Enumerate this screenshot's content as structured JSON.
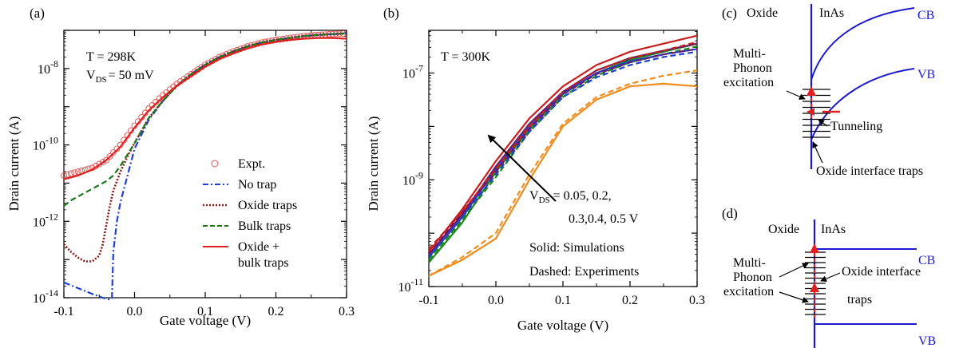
{
  "chart_data": [
    {
      "panel": "(a)",
      "type": "line",
      "xlabel": "Gate voltage (V)",
      "ylabel": "Drain current (A)",
      "xlim": [
        -0.1,
        0.3
      ],
      "ylim_log10": [
        -14,
        -7
      ],
      "y_scale": "log",
      "x_ticks": [
        "-0.1",
        "0.0",
        "0.1",
        "0.2",
        "0.3"
      ],
      "y_ticks": [
        {
          "base": "10",
          "exp": "-14"
        },
        {
          "base": "10",
          "exp": "-12"
        },
        {
          "base": "10",
          "exp": "-10"
        },
        {
          "base": "10",
          "exp": "-8"
        }
      ],
      "annotation_T": "T = 298K",
      "annotation_V": {
        "main": "V",
        "sub": "DS",
        "rest": "= 50 mV"
      },
      "legend_position": "lower-right",
      "series": [
        {
          "name": "Expt.",
          "style": "circles",
          "color": "#e05050",
          "x": [
            -0.1,
            -0.08,
            -0.06,
            -0.04,
            -0.02,
            0.0,
            0.02,
            0.04,
            0.06,
            0.08,
            0.1,
            0.12,
            0.14,
            0.16,
            0.18,
            0.2,
            0.22,
            0.24,
            0.26,
            0.28,
            0.3
          ],
          "log10_y": [
            -10.8,
            -10.7,
            -10.6,
            -10.4,
            -10.0,
            -9.5,
            -9.05,
            -8.7,
            -8.4,
            -8.15,
            -7.9,
            -7.7,
            -7.55,
            -7.42,
            -7.32,
            -7.25,
            -7.2,
            -7.15,
            -7.12,
            -7.1,
            -7.08
          ]
        },
        {
          "name": "No trap",
          "style": "dashdot",
          "color": "#2040d0",
          "x": [
            -0.1,
            -0.08,
            -0.06,
            -0.045,
            -0.035,
            -0.032,
            -0.03,
            -0.025,
            -0.02,
            -0.01,
            0.0,
            0.02,
            0.04,
            0.06,
            0.08,
            0.1,
            0.12,
            0.14,
            0.16,
            0.18,
            0.2,
            0.22,
            0.24,
            0.26,
            0.28,
            0.3
          ],
          "log10_y": [
            -13.6,
            -13.75,
            -13.9,
            -14.0,
            -14.05,
            -14.0,
            -12.8,
            -12.0,
            -11.5,
            -10.8,
            -10.1,
            -9.35,
            -8.85,
            -8.45,
            -8.15,
            -7.9,
            -7.7,
            -7.55,
            -7.42,
            -7.32,
            -7.25,
            -7.2,
            -7.15,
            -7.12,
            -7.1,
            -7.08
          ]
        },
        {
          "name": "Oxide traps",
          "style": "dotted",
          "color": "#8b1a1a",
          "x": [
            -0.1,
            -0.09,
            -0.08,
            -0.07,
            -0.06,
            -0.05,
            -0.045,
            -0.04,
            -0.035,
            -0.03,
            -0.02,
            -0.01,
            0.0,
            0.02,
            0.04,
            0.06,
            0.08,
            0.1,
            0.12,
            0.14,
            0.16,
            0.18,
            0.2,
            0.22,
            0.24,
            0.26,
            0.28,
            0.3
          ],
          "log10_y": [
            -12.6,
            -12.8,
            -12.95,
            -13.05,
            -13.05,
            -12.9,
            -12.6,
            -12.1,
            -11.6,
            -11.2,
            -10.7,
            -10.3,
            -9.95,
            -9.3,
            -8.85,
            -8.45,
            -8.15,
            -7.9,
            -7.7,
            -7.55,
            -7.42,
            -7.32,
            -7.25,
            -7.2,
            -7.15,
            -7.12,
            -7.1,
            -7.08
          ]
        },
        {
          "name": "Bulk traps",
          "style": "dashed",
          "color": "#1a7a1a",
          "x": [
            -0.1,
            -0.09,
            -0.08,
            -0.07,
            -0.06,
            -0.05,
            -0.04,
            -0.03,
            -0.02,
            -0.01,
            0.0,
            0.02,
            0.04,
            0.06,
            0.08,
            0.1,
            0.12,
            0.14,
            0.16,
            0.18,
            0.2,
            0.22,
            0.24,
            0.26,
            0.28,
            0.3
          ],
          "log10_y": [
            -11.6,
            -11.45,
            -11.35,
            -11.25,
            -11.15,
            -11.05,
            -10.95,
            -10.8,
            -10.55,
            -10.25,
            -9.95,
            -9.3,
            -8.85,
            -8.45,
            -8.15,
            -7.9,
            -7.7,
            -7.55,
            -7.42,
            -7.32,
            -7.25,
            -7.2,
            -7.15,
            -7.12,
            -7.1,
            -7.08
          ]
        },
        {
          "name": "Oxide +\nbulk traps",
          "style": "solid",
          "color": "#e02020",
          "x": [
            -0.1,
            -0.08,
            -0.06,
            -0.04,
            -0.02,
            0.0,
            0.02,
            0.04,
            0.06,
            0.08,
            0.1,
            0.12,
            0.14,
            0.16,
            0.18,
            0.2,
            0.22,
            0.24,
            0.26,
            0.28,
            0.3
          ],
          "log10_y": [
            -10.9,
            -10.8,
            -10.65,
            -10.4,
            -10.05,
            -9.55,
            -9.1,
            -8.75,
            -8.45,
            -8.2,
            -7.95,
            -7.75,
            -7.6,
            -7.47,
            -7.37,
            -7.3,
            -7.25,
            -7.22,
            -7.2,
            -7.2,
            -7.22
          ]
        }
      ]
    },
    {
      "panel": "(b)",
      "type": "line",
      "xlabel": "Gate voltage (V)",
      "ylabel": "Drain current (A)",
      "xlim": [
        -0.1,
        0.3
      ],
      "ylim_log10": [
        -11,
        -6.2
      ],
      "y_scale": "log",
      "x_ticks": [
        "-0.1",
        "0.0",
        "0.1",
        "0.2",
        "0.3"
      ],
      "y_ticks": [
        {
          "base": "10",
          "exp": "-11"
        },
        {
          "base": "10",
          "exp": "-9"
        },
        {
          "base": "10",
          "exp": "-7"
        }
      ],
      "annotation_T": "T = 300K",
      "annotation_vds": {
        "main": "V",
        "sub": "DS",
        "rest": "= 0.05, 0.2,",
        "line2": "0.3,0.4, 0.5 V"
      },
      "annotation_solid": "Solid: Simulations",
      "annotation_dashed": "Dashed: Experiments",
      "series": [
        {
          "color": "#f08c1e",
          "style": "solid",
          "x": [
            -0.1,
            -0.05,
            0.0,
            0.05,
            0.1,
            0.15,
            0.2,
            0.25,
            0.3
          ],
          "log10_y": [
            -10.8,
            -10.5,
            -10.1,
            -9.0,
            -8.0,
            -7.5,
            -7.25,
            -7.2,
            -7.25
          ]
        },
        {
          "color": "#f08c1e",
          "style": "dashed",
          "x": [
            -0.1,
            -0.05,
            0.0,
            0.05,
            0.1,
            0.15,
            0.2,
            0.25,
            0.3
          ],
          "log10_y": [
            -10.8,
            -10.45,
            -10.0,
            -8.9,
            -7.95,
            -7.45,
            -7.2,
            -7.05,
            -6.95
          ]
        },
        {
          "color": "#1a8a1a",
          "style": "solid",
          "x": [
            -0.1,
            -0.05,
            0.0,
            0.05,
            0.1,
            0.15,
            0.2,
            0.25,
            0.3
          ],
          "log10_y": [
            -10.55,
            -9.8,
            -8.85,
            -8.05,
            -7.4,
            -7.0,
            -6.75,
            -6.6,
            -6.45
          ]
        },
        {
          "color": "#1a8a1a",
          "style": "dashed",
          "x": [
            -0.1,
            -0.05,
            0.0,
            0.05,
            0.1,
            0.15,
            0.2,
            0.25,
            0.3
          ],
          "log10_y": [
            -10.5,
            -9.75,
            -8.95,
            -8.1,
            -7.45,
            -7.05,
            -6.8,
            -6.65,
            -6.5
          ]
        },
        {
          "color": "#2040d0",
          "style": "solid",
          "x": [
            -0.1,
            -0.05,
            0.0,
            0.05,
            0.1,
            0.15,
            0.2,
            0.25,
            0.3
          ],
          "log10_y": [
            -10.45,
            -9.7,
            -8.8,
            -8.0,
            -7.38,
            -7.0,
            -6.78,
            -6.65,
            -6.55
          ]
        },
        {
          "color": "#2040d0",
          "style": "dashed",
          "x": [
            -0.1,
            -0.05,
            0.0,
            0.05,
            0.1,
            0.15,
            0.2,
            0.25,
            0.3
          ],
          "log10_y": [
            -10.45,
            -9.7,
            -8.9,
            -8.1,
            -7.45,
            -7.08,
            -6.85,
            -6.7,
            -6.6
          ]
        },
        {
          "color": "#6a1a6a",
          "style": "solid",
          "x": [
            -0.1,
            -0.05,
            0.0,
            0.05,
            0.1,
            0.15,
            0.2,
            0.25,
            0.3
          ],
          "log10_y": [
            -10.4,
            -9.65,
            -8.75,
            -7.95,
            -7.35,
            -6.95,
            -6.72,
            -6.58,
            -6.45
          ]
        },
        {
          "color": "#6a1a6a",
          "style": "dashed",
          "x": [
            -0.1,
            -0.05,
            0.0,
            0.05,
            0.1,
            0.15,
            0.2,
            0.25,
            0.3
          ],
          "log10_y": [
            -10.4,
            -9.6,
            -8.85,
            -8.05,
            -7.4,
            -7.02,
            -6.8,
            -6.65,
            -6.55
          ]
        },
        {
          "color": "#c81e1e",
          "style": "solid",
          "x": [
            -0.1,
            -0.05,
            0.0,
            0.05,
            0.1,
            0.15,
            0.2,
            0.25,
            0.3
          ],
          "log10_y": [
            -10.35,
            -9.55,
            -8.65,
            -7.85,
            -7.25,
            -6.85,
            -6.6,
            -6.45,
            -6.3
          ]
        },
        {
          "color": "#c81e1e",
          "style": "dashed",
          "x": [
            -0.1,
            -0.05,
            0.0,
            0.05,
            0.1,
            0.15,
            0.2,
            0.25,
            0.3
          ],
          "log10_y": [
            -10.3,
            -9.6,
            -8.8,
            -8.0,
            -7.35,
            -6.95,
            -6.72,
            -6.58,
            -6.42
          ]
        }
      ]
    }
  ],
  "diagram_c": {
    "panel": "(c)",
    "oxide": "Oxide",
    "inas": "InAs",
    "cb": "CB",
    "vb": "VB",
    "multi1": "Multi-",
    "multi2": "Phonon",
    "multi3": "excitation",
    "tunneling": "Tunneling",
    "traps": "Oxide interface traps",
    "line_color": "#1a1ad0",
    "arrow_color": "#e02020"
  },
  "diagram_d": {
    "panel": "(d)",
    "oxide": "Oxide",
    "inas": "InAs",
    "cb": "CB",
    "vb": "VB",
    "multi1": "Multi-",
    "multi2": "Phonon",
    "multi3": "excitation",
    "traps1": "Oxide interface",
    "traps2": "traps",
    "line_color": "#1a1ad0",
    "arrow_color": "#e02020"
  }
}
